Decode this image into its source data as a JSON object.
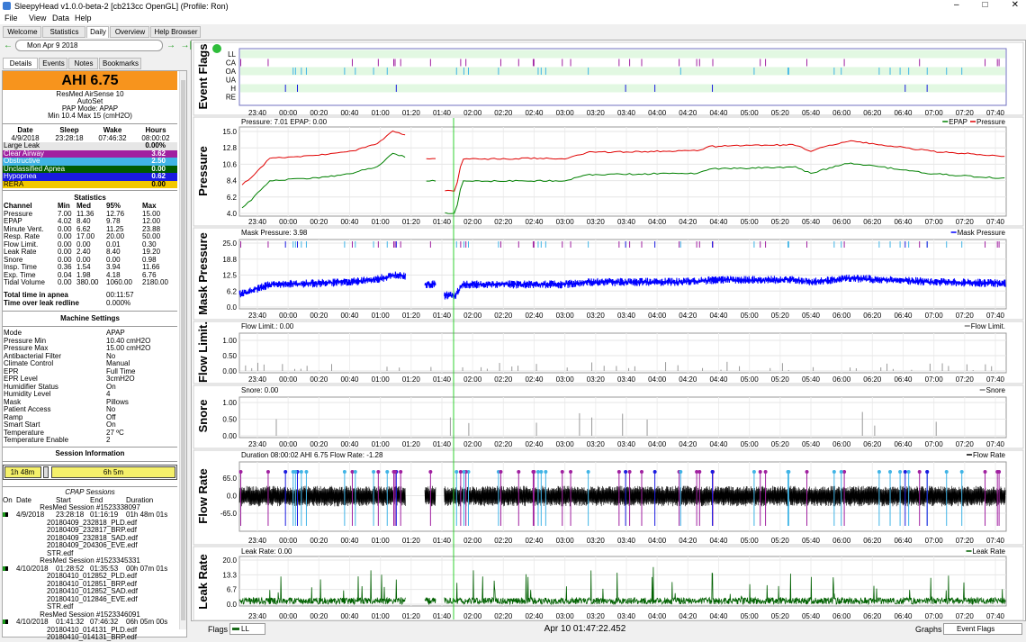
{
  "window": {
    "title": "SleepyHead v1.0.0-beta-2 [cb213cc OpenGL] (Profile: Ron)",
    "menu": [
      "File",
      "View",
      "Data",
      "Help"
    ]
  },
  "tabs": [
    "Welcome",
    "Statistics",
    "Daily",
    "Overview",
    "Help Browser"
  ],
  "date": "Mon Apr 9 2018",
  "subtabs": [
    "Details",
    "Events",
    "Notes",
    "Bookmarks"
  ],
  "ahi": "AHI 6.75",
  "machine": [
    "ResMed AirSense 10",
    "AutoSet",
    "PAP Mode: APAP",
    "Min 10.4 Max 15 (cmH2O)"
  ],
  "summary": {
    "header": [
      "Date",
      "Sleep",
      "Wake",
      "Hours"
    ],
    "row": [
      "4/9/2018",
      "23:28:18",
      "07:46:32",
      "08:00:02"
    ]
  },
  "indices": [
    {
      "name": "Large Leak",
      "value": "0.00%",
      "color": "#e6e6e6"
    },
    {
      "name": "Clear Airway",
      "value": "3.62",
      "color": "#a020a0"
    },
    {
      "name": "Obstructive",
      "value": "2.50",
      "color": "#40b4e6"
    },
    {
      "name": "Unclassified Apnea",
      "value": "0.00",
      "color": "#005a00"
    },
    {
      "name": "Hypopnea",
      "value": "0.62",
      "color": "#1a1ae0"
    },
    {
      "name": "RERA",
      "value": "0.00",
      "color": "#f2c800"
    }
  ],
  "statistics": {
    "title": "Statistics",
    "header": [
      "Channel",
      "Min",
      "Med",
      "95%",
      "Max"
    ],
    "rows": [
      [
        "Pressure",
        "7.00",
        "11.36",
        "12.76",
        "15.00"
      ],
      [
        "EPAP",
        "4.02",
        "8.40",
        "9.78",
        "12.00"
      ],
      [
        "Minute Vent.",
        "0.00",
        "6.62",
        "11.25",
        "23.88"
      ],
      [
        "Resp. Rate",
        "0.00",
        "17.00",
        "20.00",
        "50.00"
      ],
      [
        "Flow Limit.",
        "0.00",
        "0.00",
        "0.01",
        "0.30"
      ],
      [
        "Leak Rate",
        "0.00",
        "2.40",
        "8.40",
        "19.20"
      ],
      [
        "Snore",
        "0.00",
        "0.00",
        "0.00",
        "0.98"
      ],
      [
        "Insp. Time",
        "0.36",
        "1.54",
        "3.94",
        "11.66"
      ],
      [
        "Exp. Time",
        "0.04",
        "1.98",
        "4.18",
        "6.76"
      ],
      [
        "Tidal Volume",
        "0.00",
        "380.00",
        "1060.00",
        "2180.00"
      ]
    ]
  },
  "totals": [
    [
      "Total time in apnea",
      "00:11:57"
    ],
    [
      "Time over leak redline",
      "0.000%"
    ]
  ],
  "settings": {
    "title": "Machine Settings",
    "rows": [
      [
        "Mode",
        "APAP"
      ],
      [
        "Pressure Min",
        "10.40 cmH2O"
      ],
      [
        "Pressure Max",
        "15.00 cmH2O"
      ],
      [
        "Antibacterial Filter",
        "No"
      ],
      [
        "Climate Control",
        "Manual"
      ],
      [
        "EPR",
        "Full Time"
      ],
      [
        "EPR Level",
        "3cmH2O"
      ],
      [
        "Humidifier Status",
        "On"
      ],
      [
        "Humidity Level",
        "4"
      ],
      [
        "Mask",
        "Pillows"
      ],
      [
        "Patient Access",
        "No"
      ],
      [
        "Ramp",
        "Off"
      ],
      [
        "Smart Start",
        "On"
      ],
      [
        "Temperature",
        "27 ºC"
      ],
      [
        "Temperature Enable",
        "2"
      ]
    ]
  },
  "session_info": {
    "title": "Session Information",
    "bar": [
      "1h 48m",
      "6h 5m"
    ]
  },
  "sessions": {
    "title": "CPAP Sessions",
    "header": [
      "On",
      "Date",
      "Start",
      "End",
      "Duration"
    ],
    "items": [
      {
        "name": "ResMed Session #1523338097",
        "row": [
          "4/9/2018",
          "23:28:18",
          "01:16:19",
          "01h 48m 01s"
        ],
        "files": [
          "20180409_232818_PLD.edf",
          "20180409_232817_BRP.edf",
          "20180409_232818_SAD.edf",
          "20180409_204306_EVE.edf",
          "STR.edf"
        ]
      },
      {
        "name": "ResMed Session #1523345331",
        "row": [
          "4/10/2018",
          "01:28:52",
          "01:35:53",
          "00h 07m 01s"
        ],
        "files": [
          "20180410_012852_PLD.edf",
          "20180410_012851_BRP.edf",
          "20180410_012852_SAD.edf",
          "20180410_012846_EVE.edf",
          "STR.edf"
        ]
      },
      {
        "name": "ResMed Session #1523346091",
        "row": [
          "4/10/2018",
          "01:41:32",
          "07:46:32",
          "06h 05m 00s"
        ],
        "files": [
          "20180410_014131_PLD.edf",
          "20180410_014131_BRP.edf"
        ]
      }
    ]
  },
  "graphs": {
    "time_ticks": [
      "23:40",
      "00:00",
      "00:20",
      "00:40",
      "01:00",
      "01:20",
      "01:40",
      "02:00",
      "02:20",
      "02:40",
      "03:00",
      "03:20",
      "03:40",
      "04:00",
      "04:20",
      "04:40",
      "05:00",
      "05:20",
      "05:40",
      "06:00",
      "06:20",
      "06:40",
      "07:00",
      "07:20",
      "07:40"
    ],
    "event_flags": {
      "title": "Event Flags",
      "rows": [
        "LL",
        "CA",
        "OA",
        "UA",
        "H",
        "RE"
      ]
    },
    "panels": [
      {
        "title": "Pressure",
        "info": "Pressure: 7.01 EPAP: 0.00",
        "legend": [
          {
            "name": "EPAP",
            "color": "#008000"
          },
          {
            "name": "Pressure",
            "color": "#e00000"
          }
        ],
        "yticks": [
          "15.0",
          "12.8",
          "10.6",
          "8.4",
          "6.2",
          "4.0"
        ]
      },
      {
        "title": "Mask Pressure",
        "info": "Mask Pressure: 3.98",
        "legend": [
          {
            "name": "Mask Pressure",
            "color": "#0000ff"
          }
        ],
        "yticks": [
          "25.0",
          "18.8",
          "12.5",
          "6.2",
          "0.0"
        ]
      },
      {
        "title": "Flow Limit.",
        "info": "Flow Limit.: 0.00",
        "legend": [
          {
            "name": "Flow Limit.",
            "color": "#808080"
          }
        ],
        "yticks": [
          "1.00",
          "0.50",
          "0.00"
        ]
      },
      {
        "title": "Snore",
        "info": "Snore: 0.00",
        "legend": [
          {
            "name": "Snore",
            "color": "#808080"
          }
        ],
        "yticks": [
          "1.00",
          "0.50",
          "0.00"
        ]
      },
      {
        "title": "Flow Rate",
        "info": "Duration 08:00:02 AHI 6.75 Flow Rate: -1.28",
        "legend": [
          {
            "name": "Flow Rate",
            "color": "#000000"
          }
        ],
        "yticks": [
          "65.0",
          "0.0",
          "-65.0"
        ]
      },
      {
        "title": "Leak Rate",
        "info": "Leak Rate: 0.00",
        "legend": [
          {
            "name": "Leak Rate",
            "color": "#006000"
          }
        ],
        "yticks": [
          "20.0",
          "13.3",
          "6.7",
          "0.0"
        ]
      }
    ]
  },
  "bottom": {
    "flags": "Flags",
    "flag_select": "LL",
    "time": "Apr 10 01:47:22.452",
    "graphs": "Graphs",
    "graph_select": "Event Flags"
  }
}
